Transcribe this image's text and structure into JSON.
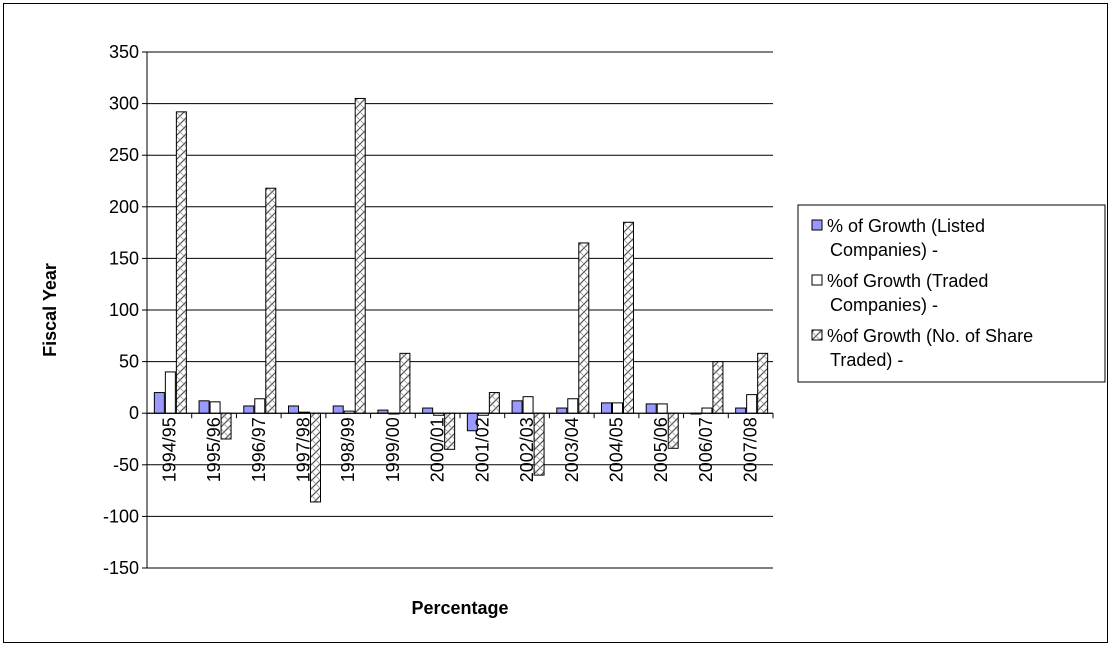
{
  "chart_data": {
    "type": "bar",
    "xlabel": "Percentage",
    "ylabel": "Fiscal Year",
    "ylim": [
      -150,
      350
    ],
    "ytick_step": 50,
    "yticks": [
      "350",
      "300",
      "250",
      "200",
      "150",
      "100",
      "50",
      "0",
      "-50",
      "-100",
      "-150"
    ],
    "grid": true,
    "legend_position": "right",
    "categories": [
      "1994/95",
      "1995/96",
      "1996/97",
      "1997/98",
      "1998/99",
      "1999/00",
      "2000/01",
      "2001/02",
      "2002/03",
      "2003/04",
      "2004/05",
      "2005/06",
      "2006/07",
      "2007/08"
    ],
    "series": [
      {
        "name": "%  of Growth (Listed Companies) -",
        "legend_lines": [
          "%  of Growth (Listed",
          "Companies) -"
        ],
        "color": "#9999ff",
        "pattern": "solid",
        "values": [
          20,
          12,
          7,
          7,
          7,
          3,
          5,
          -17,
          12,
          5,
          10,
          9,
          0,
          5
        ]
      },
      {
        "name": "%of Growth (Traded Companies) -",
        "legend_lines": [
          "%of Growth (Traded",
          "Companies) -"
        ],
        "color": "#ffffff",
        "pattern": "plain",
        "values": [
          40,
          11,
          14,
          1,
          2,
          0,
          -2,
          -2,
          16,
          14,
          10,
          9,
          5,
          18
        ]
      },
      {
        "name": "%of Growth (No. of Share Traded) -",
        "legend_lines": [
          "%of Growth (No. of Share",
          "Traded) -"
        ],
        "color": "#ffffff",
        "pattern": "cross-hatch",
        "values": [
          292,
          -25,
          218,
          -86,
          305,
          58,
          -35,
          20,
          -60,
          165,
          185,
          -34,
          50,
          58
        ]
      }
    ]
  }
}
